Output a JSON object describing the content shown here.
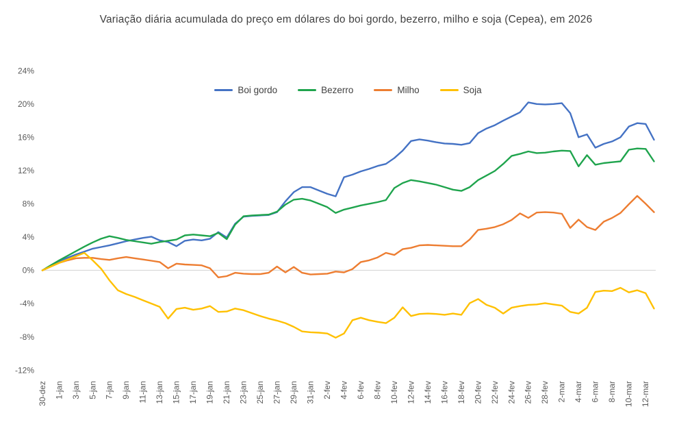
{
  "title": "Variação diária acumulada do preço em dólares do boi gordo, bezerro, milho e soja (Cepea), em 2026",
  "style": {
    "background": "#FFFFFF",
    "title_color": "#404040",
    "axis_text_color": "#595959",
    "zero_line_color": "#D9D9D9"
  },
  "chart_data": {
    "type": "line",
    "title": "Variação diária acumulada do preço em dólares do boi gordo, bezerro, milho e soja (Cepea), em 2026",
    "xlabel": "",
    "ylabel": "",
    "ylim": [
      -12,
      24
    ],
    "yticks": [
      24,
      20,
      16,
      12,
      8,
      4,
      0,
      -4,
      -8,
      -12
    ],
    "ytick_suffix": "%",
    "grid": "zero-line-only",
    "legend_position": "top-center",
    "x_label_every": 2,
    "x": [
      "30-dez",
      "31-dez",
      "1-jan",
      "2-jan",
      "3-jan",
      "4-jan",
      "5-jan",
      "6-jan",
      "7-jan",
      "8-jan",
      "9-jan",
      "10-jan",
      "11-jan",
      "12-jan",
      "13-jan",
      "14-jan",
      "15-jan",
      "16-jan",
      "17-jan",
      "18-jan",
      "19-jan",
      "20-jan",
      "21-jan",
      "22-jan",
      "23-jan",
      "24-jan",
      "25-jan",
      "26-jan",
      "27-jan",
      "28-jan",
      "29-jan",
      "30-jan",
      "31-jan",
      "1-fev",
      "2-fev",
      "3-fev",
      "4-fev",
      "5-fev",
      "6-fev",
      "7-fev",
      "8-fev",
      "9-fev",
      "10-fev",
      "11-fev",
      "12-fev",
      "13-fev",
      "14-fev",
      "15-fev",
      "16-fev",
      "17-fev",
      "18-fev",
      "19-fev",
      "20-fev",
      "21-fev",
      "22-fev",
      "23-fev",
      "24-fev",
      "25-fev",
      "26-fev",
      "27-fev",
      "28-fev",
      "1-mar",
      "2-mar",
      "3-mar",
      "4-mar",
      "5-mar",
      "6-mar",
      "7-mar",
      "8-mar",
      "9-mar",
      "10-mar",
      "11-mar",
      "12-mar",
      "13-mar"
    ],
    "series": [
      {
        "name": "Boi gordo",
        "color": "#4472C4",
        "values": [
          0,
          0.55,
          1.1,
          1.5,
          1.9,
          2.25,
          2.6,
          2.8,
          3.0,
          3.25,
          3.5,
          3.7,
          3.9,
          4.05,
          3.6,
          3.4,
          2.9,
          3.55,
          3.7,
          3.6,
          3.8,
          4.6,
          3.95,
          5.6,
          6.45,
          6.55,
          6.6,
          6.65,
          7.0,
          8.3,
          9.4,
          10.0,
          10.0,
          9.6,
          9.2,
          8.9,
          11.2,
          11.5,
          11.9,
          12.2,
          12.55,
          12.8,
          13.5,
          14.4,
          15.55,
          15.75,
          15.6,
          15.4,
          15.25,
          15.2,
          15.1,
          15.3,
          16.5,
          17.05,
          17.45,
          18.0,
          18.5,
          19.0,
          20.2,
          20.0,
          19.95,
          20.0,
          20.1,
          18.9,
          16.0,
          16.35,
          14.75,
          15.2,
          15.5,
          16.0,
          17.3,
          17.7,
          17.6,
          15.7
        ]
      },
      {
        "name": "Bezerro",
        "color": "#1FA44D",
        "values": [
          0,
          0.6,
          1.2,
          1.75,
          2.3,
          2.85,
          3.35,
          3.8,
          4.1,
          3.9,
          3.65,
          3.5,
          3.35,
          3.2,
          3.4,
          3.55,
          3.7,
          4.2,
          4.3,
          4.2,
          4.1,
          4.5,
          3.75,
          5.5,
          6.5,
          6.6,
          6.65,
          6.7,
          7.05,
          7.9,
          8.5,
          8.6,
          8.4,
          8.0,
          7.6,
          6.9,
          7.3,
          7.55,
          7.8,
          8.0,
          8.2,
          8.45,
          9.9,
          10.5,
          10.85,
          10.7,
          10.5,
          10.3,
          10.0,
          9.7,
          9.55,
          10.0,
          10.85,
          11.4,
          11.95,
          12.8,
          13.75,
          14.0,
          14.3,
          14.1,
          14.15,
          14.3,
          14.4,
          14.35,
          12.5,
          13.85,
          12.7,
          12.9,
          13.0,
          13.1,
          14.5,
          14.65,
          14.6,
          13.1
        ]
      },
      {
        "name": "Milho",
        "color": "#ED7D31",
        "values": [
          0,
          0.45,
          0.9,
          1.2,
          1.45,
          1.5,
          1.5,
          1.35,
          1.25,
          1.45,
          1.6,
          1.45,
          1.3,
          1.15,
          1.0,
          0.25,
          0.8,
          0.7,
          0.65,
          0.6,
          0.25,
          -0.85,
          -0.7,
          -0.3,
          -0.4,
          -0.45,
          -0.45,
          -0.3,
          0.45,
          -0.25,
          0.4,
          -0.3,
          -0.5,
          -0.45,
          -0.4,
          -0.15,
          -0.25,
          0.15,
          1.0,
          1.2,
          1.55,
          2.1,
          1.85,
          2.55,
          2.7,
          3.0,
          3.05,
          3.0,
          2.95,
          2.9,
          2.9,
          3.7,
          4.85,
          5.0,
          5.2,
          5.55,
          6.05,
          6.85,
          6.3,
          6.95,
          7.0,
          6.95,
          6.8,
          5.1,
          6.1,
          5.2,
          4.85,
          5.85,
          6.3,
          6.9,
          7.95,
          8.95,
          8.0,
          7.0
        ]
      },
      {
        "name": "Soja",
        "color": "#FFC000",
        "values": [
          0,
          0.45,
          0.9,
          1.3,
          1.7,
          2.1,
          1.2,
          0.2,
          -1.2,
          -2.4,
          -2.85,
          -3.2,
          -3.6,
          -4.0,
          -4.4,
          -5.8,
          -4.65,
          -4.5,
          -4.75,
          -4.6,
          -4.3,
          -5.0,
          -4.95,
          -4.6,
          -4.8,
          -5.15,
          -5.5,
          -5.8,
          -6.05,
          -6.35,
          -6.8,
          -7.35,
          -7.45,
          -7.5,
          -7.6,
          -8.1,
          -7.6,
          -6.0,
          -5.7,
          -6.0,
          -6.2,
          -6.35,
          -5.7,
          -4.45,
          -5.5,
          -5.25,
          -5.2,
          -5.25,
          -5.35,
          -5.2,
          -5.35,
          -3.95,
          -3.45,
          -4.15,
          -4.5,
          -5.2,
          -4.5,
          -4.3,
          -4.15,
          -4.1,
          -3.95,
          -4.1,
          -4.25,
          -5.0,
          -5.2,
          -4.5,
          -2.6,
          -2.45,
          -2.5,
          -2.1,
          -2.65,
          -2.4,
          -2.75,
          -4.6
        ]
      }
    ]
  }
}
